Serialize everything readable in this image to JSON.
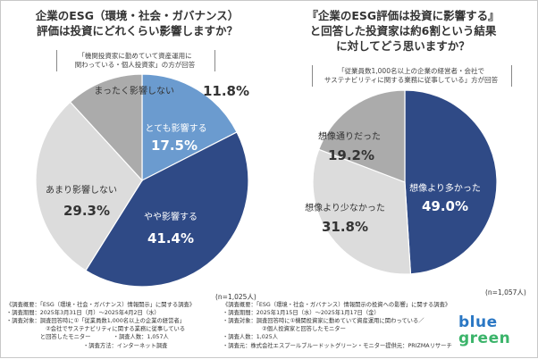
{
  "left_chart": {
    "title_lines": [
      "企業のESG（環境・社会・ガバナンス）",
      "評価は投資にどれくらい影響しますか？"
    ],
    "note_lines": [
      "「機関投資家に勤めていて資産運用に",
      "関わっている・個人投資家」の方が回答"
    ],
    "n": "(n=1,025人)",
    "survey_lines": [
      "《調査概要：「ESG（環境・社会・ガバナンス）情報開示」に関する調査》",
      "・調査期間：2025年3月31日（月）～2025年4月2日（水）",
      "・調査対象：調査回答時に①「従業員数1,000名以上の企業の経営者」",
      "　　　　　　　②会社でサステナビリティに関する業務に従事している",
      "　　　　　　と回答したモニター　　　　・調査人数：1,057人"
    ]
  },
  "right_chart": {
    "title_lines": [
      "『企業のESG評価は投資に影響する』",
      "と回答した投資家は約6割という結果",
      "に対してどう思いますか？"
    ],
    "note_lines": [
      "「従業員数1,000名以上の企業の経営者・会社で",
      "サステナビリティに関する業務に従事している」方が回答"
    ],
    "n": "(n=1,057人)",
    "survey_lines": [
      "《調査概要：「ESG（環境・社会・ガバナンス）情報開示の投資への影響」に関する調査》",
      "・調査期間：2025年1月15日（水）～2025年1月17日（金）",
      "・調査対象：調査回答時に①機関投資家に勤めていて資産運用に関わっている／",
      "　　　　　　　②個人投資家と回答したモニター",
      "・調査人数：1,025人"
    ]
  },
  "bottom": {
    "method": "・調査方法：インターネット調査",
    "org": "・調査元：株式会社エスプールブルードットグリーン・モニター提供元：PRIZMAリサーチ"
  },
  "logo": {
    "line1": "blue",
    "line2": "green"
  },
  "colors": {
    "dark_blue": "#2f4a86",
    "light_blue": "#6b9bcf",
    "light_gray": "#dcdcdc",
    "mid_gray": "#ababab"
  },
  "chart_data": [
    {
      "type": "pie",
      "title": "企業のESG（環境・社会・ガバナンス）評価は投資にどれくらい影響しますか？",
      "slices": [
        {
          "label": "とても影響する",
          "value": 17.5,
          "value_text": "17.5%",
          "color": "#6b9bcf",
          "text_color": "#ffffff"
        },
        {
          "label": "やや影響する",
          "value": 41.4,
          "value_text": "41.4%",
          "color": "#2f4a86",
          "text_color": "#ffffff"
        },
        {
          "label": "あまり影響しない",
          "value": 29.3,
          "value_text": "29.3%",
          "color": "#dcdcdc",
          "text_color": "#333333"
        },
        {
          "label": "まったく影響しない",
          "value": 11.8,
          "value_text": "11.8%",
          "color": "#ababab",
          "text_color": "#333333"
        }
      ]
    },
    {
      "type": "pie",
      "title": "『企業のESG評価は投資に影響する』と回答した投資家は約6割という結果に対してどう思いますか？",
      "slices": [
        {
          "label": "想像より多かった",
          "value": 49.0,
          "value_text": "49.0%",
          "color": "#2f4a86",
          "text_color": "#ffffff"
        },
        {
          "label": "想像より少なかった",
          "value": 31.8,
          "value_text": "31.8%",
          "color": "#dcdcdc",
          "text_color": "#333333"
        },
        {
          "label": "想像通りだった",
          "value": 19.2,
          "value_text": "19.2%",
          "color": "#ababab",
          "text_color": "#333333"
        }
      ]
    }
  ]
}
